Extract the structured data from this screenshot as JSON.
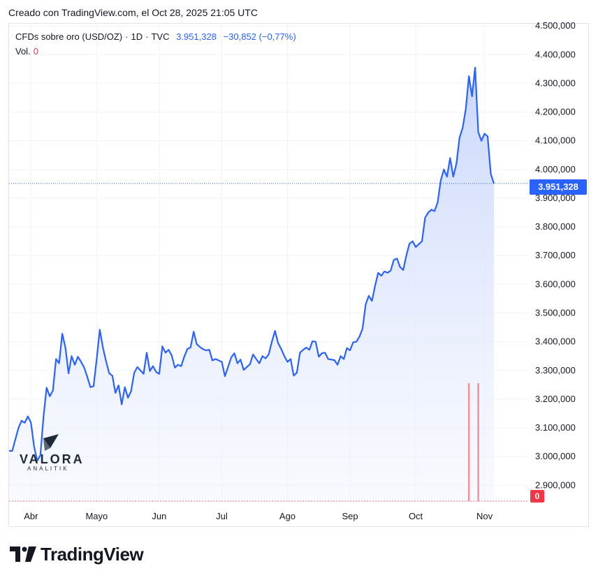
{
  "header": {
    "created": "Creado con TradingView.com, el Oct 28, 2025 21:05 UTC"
  },
  "legend": {
    "symbol": "CFDs sobre oro (USD/OZ)",
    "interval": "1D",
    "source": "TVC",
    "last": "3.951,328",
    "change": "−30,852",
    "change_pct": "(−0,77%)",
    "vol_label": "Vol.",
    "vol_value": "0"
  },
  "price_tag": "3.951,328",
  "vol_tag": "0",
  "watermark": {
    "name": "VALORA",
    "sub": "ANALITIK"
  },
  "brand": {
    "name": "TradingView"
  },
  "colors": {
    "line": "#2962ff",
    "fill_top": "#c7d5fc",
    "volume": "#f23645",
    "grid": "#f0f3fa"
  },
  "chart_data": {
    "type": "area",
    "title": "CFDs sobre oro (USD/OZ) · 1D · TVC",
    "y_tick_labels": [
      "4.500,000",
      "4.400,000",
      "4.300,000",
      "4.200,000",
      "4.100,000",
      "4.000,000",
      "3.900,000",
      "3.800,000",
      "3.700,000",
      "3.600,000",
      "3.500,000",
      "3.400,000",
      "3.300,000",
      "3.200,000",
      "3.100,000",
      "3.000,000",
      "2.900,000"
    ],
    "y_tick_values": [
      4500,
      4400,
      4300,
      4200,
      4100,
      4000,
      3900,
      3800,
      3700,
      3600,
      3500,
      3400,
      3300,
      3200,
      3100,
      3000,
      2900
    ],
    "ylim": [
      2845,
      4510
    ],
    "x_tick_labels": [
      "Abr",
      "Mayo",
      "Jun",
      "Jul",
      "Ago",
      "Sep",
      "Oct",
      "Nov"
    ],
    "x_tick_index": [
      7,
      28,
      48,
      68,
      89,
      109,
      130,
      152
    ],
    "last_value": 3951.328,
    "series": [
      {
        "values": [
          3020,
          3020,
          3060,
          3100,
          3125,
          3118,
          3140,
          3118,
          3035,
          2985,
          3005,
          3140,
          3240,
          3210,
          3230,
          3340,
          3325,
          3428,
          3380,
          3290,
          3350,
          3320,
          3348,
          3330,
          3310,
          3278,
          3242,
          3245,
          3340,
          3442,
          3380,
          3332,
          3290,
          3282,
          3222,
          3248,
          3182,
          3242,
          3205,
          3228,
          3292,
          3312,
          3300,
          3288,
          3362,
          3298,
          3315,
          3295,
          3288,
          3384,
          3362,
          3372,
          3352,
          3310,
          3320,
          3315,
          3348,
          3375,
          3380,
          3435,
          3392,
          3382,
          3374,
          3370,
          3372,
          3335,
          3340,
          3335,
          3330,
          3280,
          3312,
          3345,
          3360,
          3325,
          3338,
          3302,
          3312,
          3322,
          3356,
          3340,
          3325,
          3350,
          3342,
          3356,
          3400,
          3438,
          3395,
          3375,
          3350,
          3330,
          3340,
          3282,
          3292,
          3362,
          3372,
          3380,
          3372,
          3402,
          3400,
          3348,
          3360,
          3362,
          3340,
          3338,
          3336,
          3320,
          3350,
          3340,
          3378,
          3370,
          3398,
          3400,
          3418,
          3445,
          3530,
          3560,
          3542,
          3595,
          3640,
          3630,
          3645,
          3640,
          3648,
          3685,
          3690,
          3660,
          3650,
          3700,
          3742,
          3750,
          3730,
          3740,
          3750,
          3832,
          3850,
          3860,
          3855,
          3885,
          3962,
          4000,
          3975,
          4040,
          3975,
          4020,
          4110,
          4145,
          4210,
          4325,
          4255,
          4355,
          4130,
          4100,
          4125,
          4115,
          3985,
          3951
        ]
      }
    ],
    "volume_nonzero_index": [
      147,
      150
    ]
  }
}
